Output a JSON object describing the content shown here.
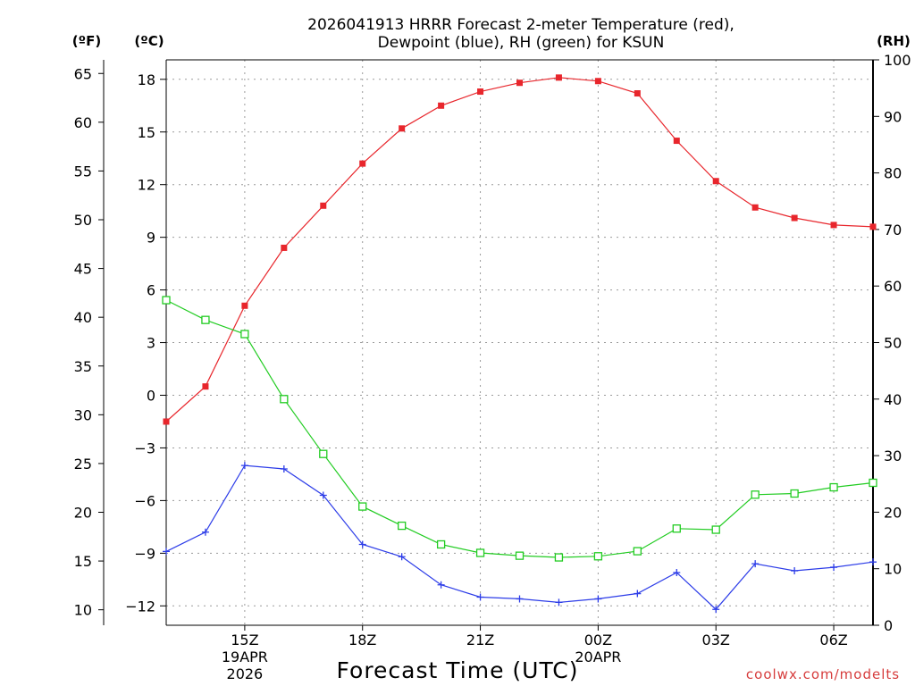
{
  "chart_data": {
    "type": "line",
    "title": "2026041913 HRRR Forecast 2-meter Temperature (red),",
    "subtitle": "Dewpoint (blue), RH (green) for KSUN",
    "xlabel": "Forecast Time (UTC)",
    "credit": "coolwx.com/modelts",
    "units": {
      "fahrenheit": "(ºF)",
      "celsius": "(ºC)",
      "rh": "(RH)"
    },
    "x_hours": [
      13,
      14,
      15,
      16,
      17,
      18,
      19,
      20,
      21,
      22,
      23,
      24,
      25,
      26,
      27,
      28,
      29,
      30,
      31
    ],
    "xlim": [
      13,
      31
    ],
    "x_ticks": [
      {
        "hour": 15,
        "label": "15Z",
        "date": "19APR",
        "year": "2026"
      },
      {
        "hour": 18,
        "label": "18Z"
      },
      {
        "hour": 21,
        "label": "21Z"
      },
      {
        "hour": 24,
        "label": "00Z",
        "date": "20APR"
      },
      {
        "hour": 27,
        "label": "03Z"
      },
      {
        "hour": 30,
        "label": "06Z"
      }
    ],
    "celsius_axis": {
      "ylim": [
        -13,
        19
      ],
      "ticks": [
        18,
        15,
        12,
        9,
        6,
        3,
        0,
        -3,
        -6,
        -9,
        -12
      ]
    },
    "fahrenheit_ticks": [
      65,
      60,
      55,
      50,
      45,
      40,
      35,
      30,
      25,
      20,
      15,
      10
    ],
    "rh_axis": {
      "ylim": [
        0,
        100
      ],
      "ticks": [
        100,
        90,
        80,
        70,
        60,
        50,
        40,
        30,
        20,
        10,
        0
      ]
    },
    "series": [
      {
        "name": "Temperature",
        "axis": "celsius",
        "color": "#e8262c",
        "marker": "filled-square",
        "values": [
          -1.5,
          0.5,
          5.1,
          8.4,
          10.8,
          13.2,
          15.2,
          16.5,
          17.3,
          17.8,
          18.1,
          17.9,
          17.2,
          14.5,
          12.2,
          10.7,
          10.1,
          9.7,
          9.6
        ]
      },
      {
        "name": "Dewpoint",
        "axis": "celsius",
        "color": "#2c3ce8",
        "marker": "plus",
        "values": [
          -8.9,
          -7.8,
          -4.0,
          -4.2,
          -5.7,
          -8.5,
          -9.2,
          -10.8,
          -11.5,
          -11.6,
          -11.8,
          -11.6,
          -11.3,
          -10.1,
          -12.2,
          -9.6,
          -10.0,
          -9.8,
          -9.5
        ]
      },
      {
        "name": "RH",
        "axis": "rh",
        "color": "#22cc22",
        "marker": "open-square",
        "values": [
          57.5,
          54.0,
          51.5,
          40.0,
          30.3,
          21.0,
          17.6,
          14.3,
          12.8,
          12.3,
          12.0,
          12.2,
          13.1,
          17.1,
          16.9,
          23.1,
          23.3,
          24.4,
          25.2
        ]
      }
    ]
  }
}
